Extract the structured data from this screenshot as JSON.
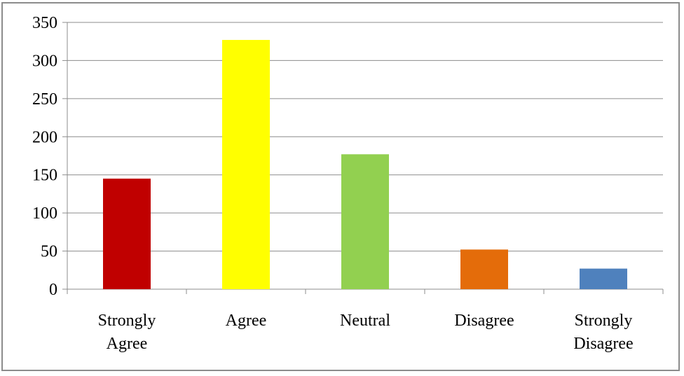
{
  "chart_data": {
    "type": "bar",
    "title": "",
    "xlabel": "",
    "ylabel": "",
    "ylim": [
      0,
      350
    ],
    "yticks": [
      0,
      50,
      100,
      150,
      200,
      250,
      300,
      350
    ],
    "grid": true,
    "legend": "none",
    "categories": [
      [
        "Strongly",
        "Agree"
      ],
      [
        "Agree"
      ],
      [
        "Neutral"
      ],
      [
        "Disagree"
      ],
      [
        "Strongly",
        "Disagree"
      ]
    ],
    "values": [
      145,
      327,
      177,
      52,
      27
    ],
    "colors": [
      "#c00000",
      "#ffff00",
      "#92d050",
      "#e46c0a",
      "#4f81bd"
    ]
  }
}
